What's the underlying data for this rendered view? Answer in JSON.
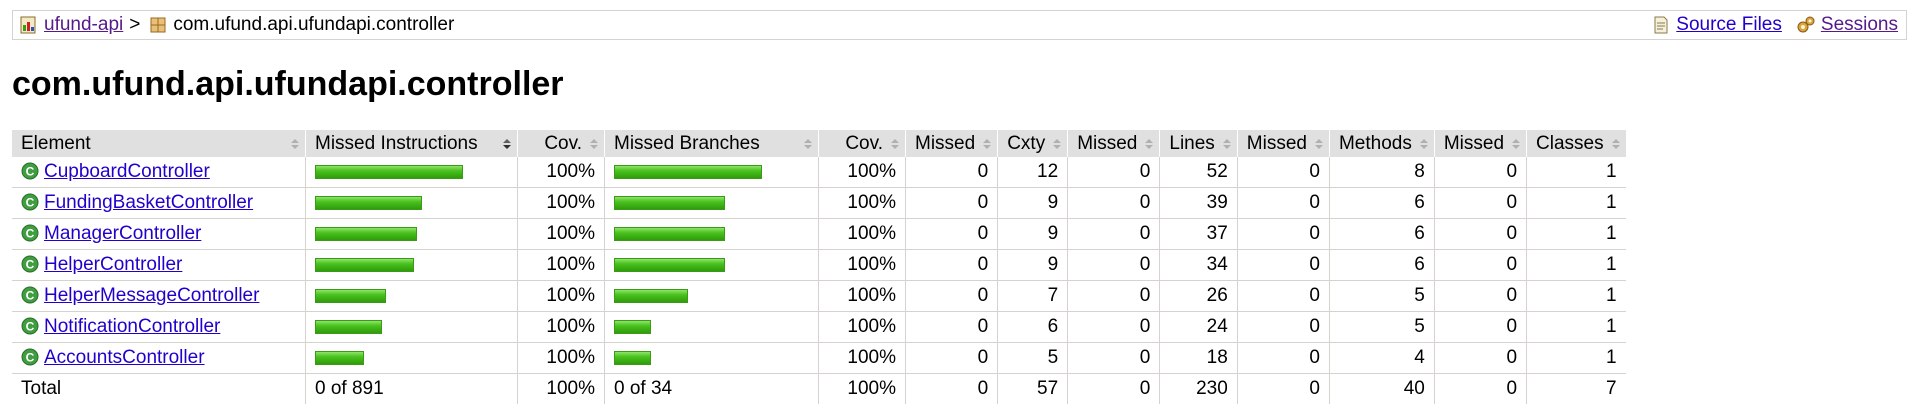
{
  "breadcrumb": {
    "project": "ufund-api",
    "separator": ">",
    "package": "com.ufund.api.ufundapi.controller",
    "source_files": "Source Files",
    "sessions": "Sessions"
  },
  "page_title": "com.ufund.api.ufundapi.controller",
  "table": {
    "headers": [
      "Element",
      "Missed Instructions",
      "Cov.",
      "Missed Branches",
      "Cov.",
      "Missed",
      "Cxty",
      "Missed",
      "Lines",
      "Missed",
      "Methods",
      "Missed",
      "Classes"
    ],
    "rows": [
      {
        "name": "CupboardController",
        "instr_cov": "100%",
        "branch_cov": "100%",
        "missed_cxty": "0",
        "cxty": "12",
        "missed_lines": "0",
        "lines": "52",
        "missed_methods": "0",
        "methods": "8",
        "missed_classes": "0",
        "classes": "1",
        "instr_bar": 1.0,
        "branch_bar": 1.0
      },
      {
        "name": "FundingBasketController",
        "instr_cov": "100%",
        "branch_cov": "100%",
        "missed_cxty": "0",
        "cxty": "9",
        "missed_lines": "0",
        "lines": "39",
        "missed_methods": "0",
        "methods": "6",
        "missed_classes": "0",
        "classes": "1",
        "instr_bar": 0.72,
        "branch_bar": 0.75
      },
      {
        "name": "ManagerController",
        "instr_cov": "100%",
        "branch_cov": "100%",
        "missed_cxty": "0",
        "cxty": "9",
        "missed_lines": "0",
        "lines": "37",
        "missed_methods": "0",
        "methods": "6",
        "missed_classes": "0",
        "classes": "1",
        "instr_bar": 0.69,
        "branch_bar": 0.75
      },
      {
        "name": "HelperController",
        "instr_cov": "100%",
        "branch_cov": "100%",
        "missed_cxty": "0",
        "cxty": "9",
        "missed_lines": "0",
        "lines": "34",
        "missed_methods": "0",
        "methods": "6",
        "missed_classes": "0",
        "classes": "1",
        "instr_bar": 0.67,
        "branch_bar": 0.75
      },
      {
        "name": "HelperMessageController",
        "instr_cov": "100%",
        "branch_cov": "100%",
        "missed_cxty": "0",
        "cxty": "7",
        "missed_lines": "0",
        "lines": "26",
        "missed_methods": "0",
        "methods": "5",
        "missed_classes": "0",
        "classes": "1",
        "instr_bar": 0.48,
        "branch_bar": 0.5
      },
      {
        "name": "NotificationController",
        "instr_cov": "100%",
        "branch_cov": "100%",
        "missed_cxty": "0",
        "cxty": "6",
        "missed_lines": "0",
        "lines": "24",
        "missed_methods": "0",
        "methods": "5",
        "missed_classes": "0",
        "classes": "1",
        "instr_bar": 0.45,
        "branch_bar": 0.25
      },
      {
        "name": "AccountsController",
        "instr_cov": "100%",
        "branch_cov": "100%",
        "missed_cxty": "0",
        "cxty": "5",
        "missed_lines": "0",
        "lines": "18",
        "missed_methods": "0",
        "methods": "4",
        "missed_classes": "0",
        "classes": "1",
        "instr_bar": 0.33,
        "branch_bar": 0.25
      }
    ],
    "total": {
      "label": "Total",
      "instr": "0 of 891",
      "instr_cov": "100%",
      "branch": "0 of 34",
      "branch_cov": "100%",
      "missed_cxty": "0",
      "cxty": "57",
      "missed_lines": "0",
      "lines": "230",
      "missed_methods": "0",
      "methods": "40",
      "missed_classes": "0",
      "classes": "7"
    }
  },
  "colors": {
    "link": "#2200cc",
    "visited_link": "#551a8b",
    "header_bg": "#e0e0e0",
    "bar_green": "#49c21d"
  },
  "icons": {
    "project": "report-icon",
    "package": "package-icon",
    "source_files": "source-file-icon",
    "sessions": "session-icon",
    "class": "class-icon",
    "sort": "sort-icon"
  }
}
